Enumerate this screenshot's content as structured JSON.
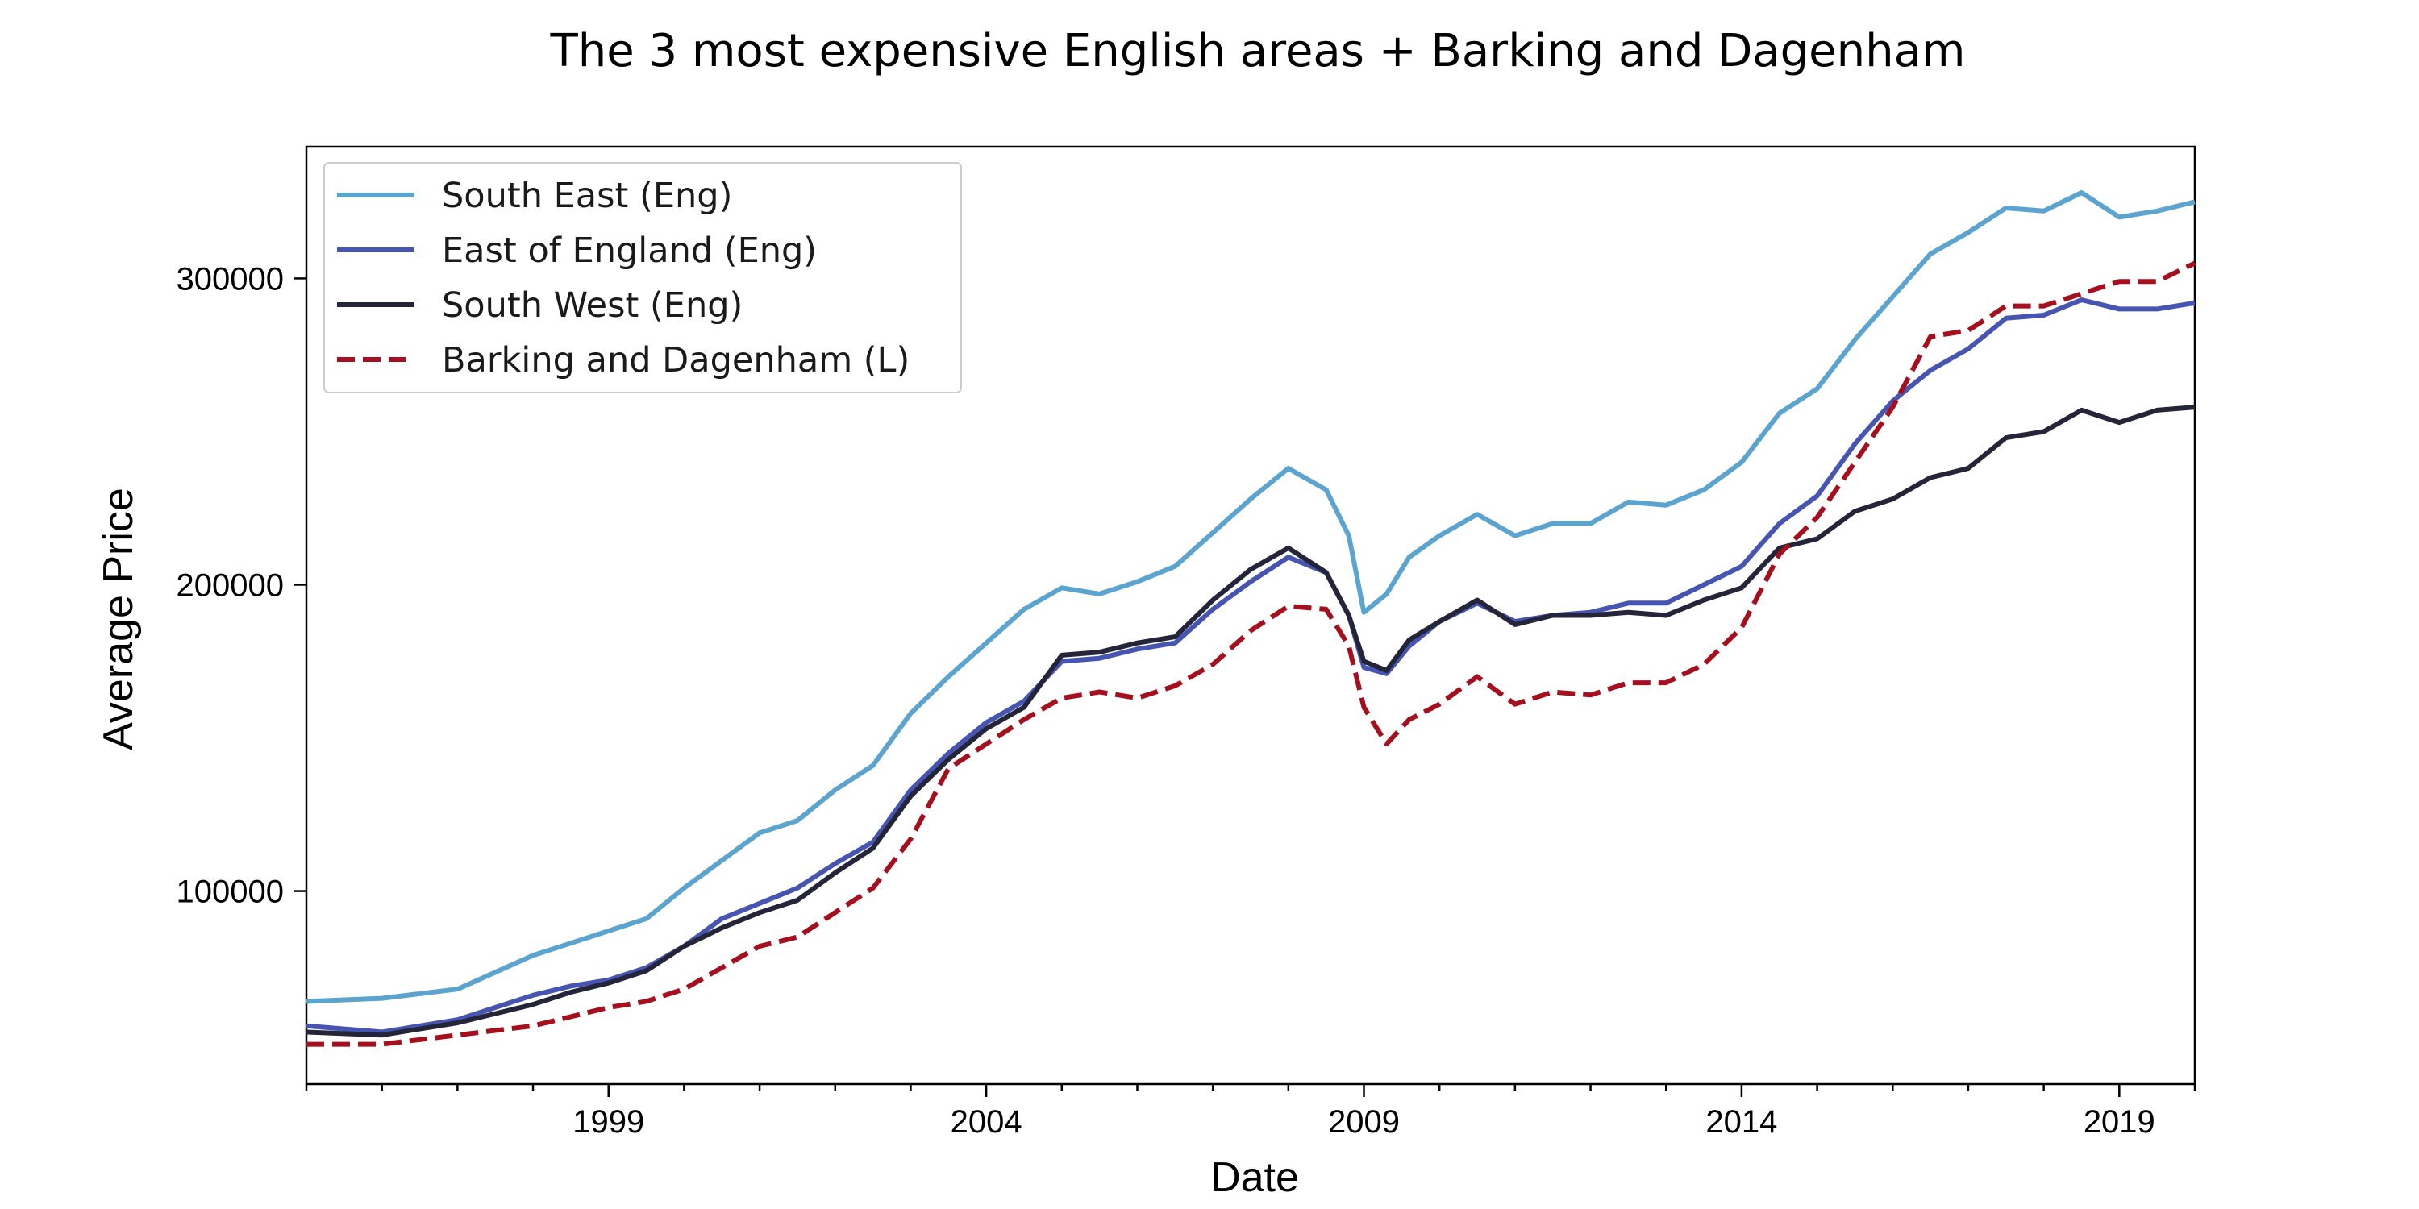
{
  "chart_data": {
    "type": "line",
    "title": "The 3 most expensive English areas + Barking and Dagenham",
    "xlabel": "Date",
    "ylabel": "Average Price",
    "xlim": [
      1995.0,
      2020.0
    ],
    "ylim": [
      37000,
      343000
    ],
    "x_ticks": [
      1999,
      2004,
      2009,
      2014,
      2019
    ],
    "y_ticks": [
      100000,
      200000,
      300000
    ],
    "grid": false,
    "legend_position": "top-left",
    "series": [
      {
        "name": "South East (Eng)",
        "color": "#5BA4CF",
        "style": "solid",
        "points": [
          [
            1995.0,
            64000
          ],
          [
            1996.0,
            65000
          ],
          [
            1997.0,
            68000
          ],
          [
            1998.0,
            79000
          ],
          [
            1998.5,
            83000
          ],
          [
            1999.0,
            87000
          ],
          [
            1999.5,
            91000
          ],
          [
            2000.0,
            101000
          ],
          [
            2000.5,
            110000
          ],
          [
            2001.0,
            119000
          ],
          [
            2001.5,
            123000
          ],
          [
            2002.0,
            133000
          ],
          [
            2002.5,
            141000
          ],
          [
            2003.0,
            158000
          ],
          [
            2003.5,
            170000
          ],
          [
            2004.0,
            181000
          ],
          [
            2004.5,
            192000
          ],
          [
            2005.0,
            199000
          ],
          [
            2005.5,
            197000
          ],
          [
            2006.0,
            201000
          ],
          [
            2006.5,
            206000
          ],
          [
            2007.0,
            217000
          ],
          [
            2007.5,
            228000
          ],
          [
            2008.0,
            238000
          ],
          [
            2008.5,
            231000
          ],
          [
            2008.8,
            216000
          ],
          [
            2009.0,
            191000
          ],
          [
            2009.3,
            197000
          ],
          [
            2009.6,
            209000
          ],
          [
            2010.0,
            216000
          ],
          [
            2010.5,
            223000
          ],
          [
            2011.0,
            216000
          ],
          [
            2011.5,
            220000
          ],
          [
            2012.0,
            220000
          ],
          [
            2012.5,
            227000
          ],
          [
            2013.0,
            226000
          ],
          [
            2013.5,
            231000
          ],
          [
            2014.0,
            240000
          ],
          [
            2014.5,
            256000
          ],
          [
            2015.0,
            264000
          ],
          [
            2015.5,
            280000
          ],
          [
            2016.0,
            294000
          ],
          [
            2016.5,
            308000
          ],
          [
            2017.0,
            315000
          ],
          [
            2017.5,
            323000
          ],
          [
            2018.0,
            322000
          ],
          [
            2018.5,
            328000
          ],
          [
            2019.0,
            320000
          ],
          [
            2019.5,
            322000
          ],
          [
            2020.0,
            325000
          ]
        ]
      },
      {
        "name": "East of England (Eng)",
        "color": "#4755B2",
        "style": "solid",
        "points": [
          [
            1995.0,
            56000
          ],
          [
            1996.0,
            54000
          ],
          [
            1997.0,
            58000
          ],
          [
            1998.0,
            66000
          ],
          [
            1998.5,
            69000
          ],
          [
            1999.0,
            71000
          ],
          [
            1999.5,
            75000
          ],
          [
            2000.0,
            82000
          ],
          [
            2000.5,
            91000
          ],
          [
            2001.0,
            96000
          ],
          [
            2001.5,
            101000
          ],
          [
            2002.0,
            109000
          ],
          [
            2002.5,
            116000
          ],
          [
            2003.0,
            133000
          ],
          [
            2003.5,
            145000
          ],
          [
            2004.0,
            155000
          ],
          [
            2004.5,
            162000
          ],
          [
            2005.0,
            175000
          ],
          [
            2005.5,
            176000
          ],
          [
            2006.0,
            179000
          ],
          [
            2006.5,
            181000
          ],
          [
            2007.0,
            192000
          ],
          [
            2007.5,
            201000
          ],
          [
            2008.0,
            209000
          ],
          [
            2008.5,
            204000
          ],
          [
            2008.8,
            190000
          ],
          [
            2009.0,
            173000
          ],
          [
            2009.3,
            171000
          ],
          [
            2009.6,
            180000
          ],
          [
            2010.0,
            188000
          ],
          [
            2010.5,
            194000
          ],
          [
            2011.0,
            188000
          ],
          [
            2011.5,
            190000
          ],
          [
            2012.0,
            191000
          ],
          [
            2012.5,
            194000
          ],
          [
            2013.0,
            194000
          ],
          [
            2013.5,
            200000
          ],
          [
            2014.0,
            206000
          ],
          [
            2014.5,
            220000
          ],
          [
            2015.0,
            229000
          ],
          [
            2015.5,
            246000
          ],
          [
            2016.0,
            260000
          ],
          [
            2016.5,
            270000
          ],
          [
            2017.0,
            277000
          ],
          [
            2017.5,
            287000
          ],
          [
            2018.0,
            288000
          ],
          [
            2018.5,
            293000
          ],
          [
            2019.0,
            290000
          ],
          [
            2019.5,
            290000
          ],
          [
            2020.0,
            292000
          ]
        ]
      },
      {
        "name": "South West (Eng)",
        "color": "#25253A",
        "style": "solid",
        "points": [
          [
            1995.0,
            54000
          ],
          [
            1996.0,
            53000
          ],
          [
            1997.0,
            57000
          ],
          [
            1998.0,
            63000
          ],
          [
            1998.5,
            67000
          ],
          [
            1999.0,
            70000
          ],
          [
            1999.5,
            74000
          ],
          [
            2000.0,
            82000
          ],
          [
            2000.5,
            88000
          ],
          [
            2001.0,
            93000
          ],
          [
            2001.5,
            97000
          ],
          [
            2002.0,
            106000
          ],
          [
            2002.5,
            114000
          ],
          [
            2003.0,
            131000
          ],
          [
            2003.5,
            143000
          ],
          [
            2004.0,
            153000
          ],
          [
            2004.5,
            160000
          ],
          [
            2005.0,
            177000
          ],
          [
            2005.5,
            178000
          ],
          [
            2006.0,
            181000
          ],
          [
            2006.5,
            183000
          ],
          [
            2007.0,
            195000
          ],
          [
            2007.5,
            205000
          ],
          [
            2008.0,
            212000
          ],
          [
            2008.5,
            204000
          ],
          [
            2008.8,
            190000
          ],
          [
            2009.0,
            175000
          ],
          [
            2009.3,
            172000
          ],
          [
            2009.6,
            182000
          ],
          [
            2010.0,
            188000
          ],
          [
            2010.5,
            195000
          ],
          [
            2011.0,
            187000
          ],
          [
            2011.5,
            190000
          ],
          [
            2012.0,
            190000
          ],
          [
            2012.5,
            191000
          ],
          [
            2013.0,
            190000
          ],
          [
            2013.5,
            195000
          ],
          [
            2014.0,
            199000
          ],
          [
            2014.5,
            212000
          ],
          [
            2015.0,
            215000
          ],
          [
            2015.5,
            224000
          ],
          [
            2016.0,
            228000
          ],
          [
            2016.5,
            235000
          ],
          [
            2017.0,
            238000
          ],
          [
            2017.5,
            248000
          ],
          [
            2018.0,
            250000
          ],
          [
            2018.5,
            257000
          ],
          [
            2019.0,
            253000
          ],
          [
            2019.5,
            257000
          ],
          [
            2020.0,
            258000
          ]
        ]
      },
      {
        "name": "Barking and Dagenham (L)",
        "color": "#A50F1E",
        "style": "dashed",
        "points": [
          [
            1995.0,
            50000
          ],
          [
            1996.0,
            50000
          ],
          [
            1997.0,
            53000
          ],
          [
            1998.0,
            56000
          ],
          [
            1998.5,
            59000
          ],
          [
            1999.0,
            62000
          ],
          [
            1999.5,
            64000
          ],
          [
            2000.0,
            68000
          ],
          [
            2000.5,
            75000
          ],
          [
            2001.0,
            82000
          ],
          [
            2001.5,
            85000
          ],
          [
            2002.0,
            93000
          ],
          [
            2002.5,
            101000
          ],
          [
            2003.0,
            117000
          ],
          [
            2003.5,
            140000
          ],
          [
            2004.0,
            148000
          ],
          [
            2004.5,
            156000
          ],
          [
            2005.0,
            163000
          ],
          [
            2005.5,
            165000
          ],
          [
            2006.0,
            163000
          ],
          [
            2006.5,
            167000
          ],
          [
            2007.0,
            174000
          ],
          [
            2007.5,
            185000
          ],
          [
            2008.0,
            193000
          ],
          [
            2008.5,
            192000
          ],
          [
            2008.8,
            180000
          ],
          [
            2009.0,
            160000
          ],
          [
            2009.3,
            148000
          ],
          [
            2009.6,
            156000
          ],
          [
            2010.0,
            161000
          ],
          [
            2010.5,
            170000
          ],
          [
            2011.0,
            161000
          ],
          [
            2011.5,
            165000
          ],
          [
            2012.0,
            164000
          ],
          [
            2012.5,
            168000
          ],
          [
            2013.0,
            168000
          ],
          [
            2013.5,
            174000
          ],
          [
            2014.0,
            186000
          ],
          [
            2014.5,
            210000
          ],
          [
            2015.0,
            222000
          ],
          [
            2015.5,
            240000
          ],
          [
            2016.0,
            258000
          ],
          [
            2016.5,
            281000
          ],
          [
            2017.0,
            283000
          ],
          [
            2017.5,
            291000
          ],
          [
            2018.0,
            291000
          ],
          [
            2018.5,
            295000
          ],
          [
            2019.0,
            299000
          ],
          [
            2019.5,
            299000
          ],
          [
            2020.0,
            305000
          ]
        ]
      }
    ]
  }
}
